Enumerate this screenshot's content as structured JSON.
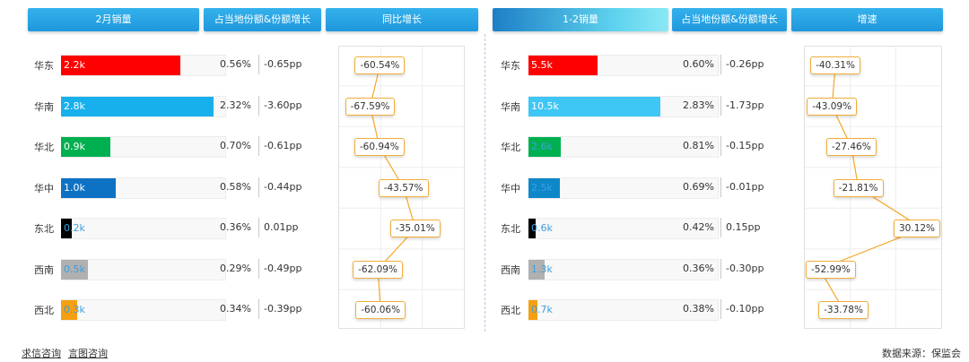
{
  "headers": {
    "left": [
      "2月销量",
      "占当地份额&份额增长",
      "同比增长"
    ],
    "right": [
      "1-2销量",
      "占当地份额&份额增长",
      "增速"
    ]
  },
  "chart_data": [
    {
      "type": "bar",
      "title": "2月销量",
      "categories": [
        "华东",
        "华南",
        "华北",
        "华中",
        "东北",
        "西南",
        "西北"
      ],
      "values": [
        2.2,
        2.8,
        0.9,
        1.0,
        0.2,
        0.5,
        0.3
      ],
      "value_labels": [
        "2.2k",
        "2.8k",
        "0.9k",
        "1.0k",
        "0.2k",
        "0.5k",
        "0.3k"
      ],
      "xlim": [
        0,
        3.0
      ],
      "colors": [
        "#ff0000",
        "#17b0ec",
        "#00b050",
        "#0e72c4",
        "#000000",
        "#b0b0b0",
        "#f5a010"
      ],
      "share": [
        "0.56%",
        "2.32%",
        "0.70%",
        "0.58%",
        "0.36%",
        "0.29%",
        "0.34%"
      ],
      "share_growth": [
        "-0.65pp",
        "-3.60pp",
        "-0.61pp",
        "-0.44pp",
        "0.01pp",
        "-0.49pp",
        "-0.39pp"
      ]
    },
    {
      "type": "line",
      "title": "同比增长",
      "categories": [
        "华东",
        "华南",
        "华北",
        "华中",
        "东北",
        "西南",
        "西北"
      ],
      "values": [
        -60.54,
        -67.59,
        -60.94,
        -43.57,
        -35.01,
        -62.09,
        -60.06
      ],
      "labels": [
        "-60.54%",
        "-67.59%",
        "-60.94%",
        "-43.57%",
        "-35.01%",
        "-62.09%",
        "-60.06%"
      ],
      "xlim": [
        -90,
        0
      ],
      "grid": true,
      "color": "#f5a623"
    },
    {
      "type": "bar",
      "title": "1-2销量",
      "categories": [
        "华东",
        "华南",
        "华北",
        "华中",
        "东北",
        "西南",
        "西北"
      ],
      "values": [
        5.5,
        10.5,
        2.6,
        2.5,
        0.6,
        1.3,
        0.7
      ],
      "value_labels": [
        "5.5k",
        "10.5k",
        "2.6k",
        "2.5k",
        "0.6k",
        "1.3k",
        "0.7k"
      ],
      "xlim": [
        0,
        15
      ],
      "colors": [
        "#ff0000",
        "#3ec7f5",
        "#00b050",
        "#0e87c8",
        "#000000",
        "#b0b0b0",
        "#f5a010"
      ],
      "share": [
        "0.60%",
        "2.83%",
        "0.81%",
        "0.69%",
        "0.42%",
        "0.36%",
        "0.38%"
      ],
      "share_growth": [
        "-0.26pp",
        "-1.73pp",
        "-0.15pp",
        "-0.01pp",
        "0.15pp",
        "-0.30pp",
        "-0.10pp"
      ]
    },
    {
      "type": "line",
      "title": "增速",
      "categories": [
        "华东",
        "华南",
        "华北",
        "华中",
        "东北",
        "西南",
        "西北"
      ],
      "values": [
        -40.31,
        -43.09,
        -27.46,
        -21.81,
        30.12,
        -52.99,
        -33.78
      ],
      "labels": [
        "-40.31%",
        "-43.09%",
        "-27.46%",
        "-21.81%",
        "30.12%",
        "-52.99%",
        "-33.78%"
      ],
      "xlim": [
        -65,
        45
      ],
      "grid": true,
      "color": "#f5a623"
    }
  ],
  "footer": {
    "link1": "求信咨询",
    "link2": "言图咨询",
    "source": "数据来源：保监会"
  }
}
